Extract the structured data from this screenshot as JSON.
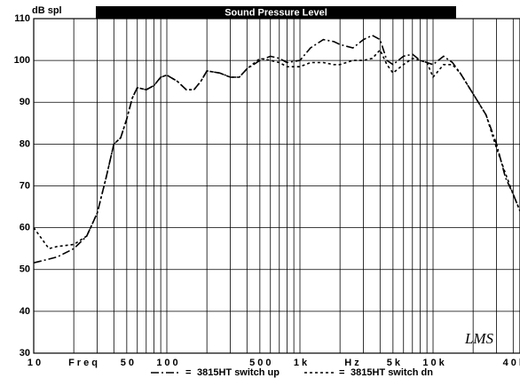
{
  "chart_data": {
    "type": "line",
    "title": "Sound Pressure Level",
    "y_label": "dB spl",
    "x_label_left": "Freq",
    "x_label_right": "Hz",
    "logo": "LMS",
    "legend_separator": "=",
    "x": [
      10,
      13,
      15,
      20,
      25,
      30,
      35,
      40,
      45,
      50,
      55,
      60,
      70,
      80,
      90,
      100,
      120,
      140,
      160,
      180,
      200,
      250,
      300,
      350,
      400,
      500,
      600,
      700,
      800,
      1000,
      1200,
      1500,
      1800,
      2000,
      2500,
      3000,
      3500,
      4000,
      4500,
      5000,
      6000,
      7000,
      8000,
      9000,
      10000,
      12000,
      14000,
      16000,
      20000,
      25000,
      30000,
      35000,
      40000,
      45000
    ],
    "series": [
      {
        "name": "3815HT switch up",
        "color": "#000000",
        "dash": "9 3 2 3",
        "values": [
          51.6,
          52.5,
          53,
          55,
          58,
          63.5,
          72,
          80,
          81.5,
          86,
          91,
          93.5,
          93,
          94,
          96,
          96.5,
          95,
          93,
          93,
          95,
          97.5,
          97,
          96,
          96,
          98,
          100,
          101,
          100.5,
          99.5,
          100,
          103,
          105,
          104.5,
          103.8,
          103,
          105,
          106,
          105,
          100,
          99,
          101,
          101.5,
          100,
          99.5,
          99,
          101,
          99.5,
          97,
          92,
          87,
          80,
          72,
          68,
          64
        ]
      },
      {
        "name": "3815HT switch dn",
        "color": "#000000",
        "dash": "3 3",
        "values": [
          60,
          55,
          55.5,
          56,
          58,
          63.5,
          72,
          80,
          81.5,
          86,
          91,
          93.5,
          93,
          94,
          96,
          96.5,
          95,
          93,
          93,
          95,
          97.5,
          97,
          96,
          96,
          98,
          100.5,
          100,
          99.5,
          98.5,
          98.5,
          99.5,
          99.5,
          99,
          99,
          100,
          100,
          100.5,
          102.5,
          99,
          97,
          99,
          100.5,
          100,
          99.5,
          96,
          99,
          99,
          97,
          92,
          87,
          79,
          73,
          68,
          64
        ]
      }
    ],
    "log_x": true,
    "xlim": [
      10,
      45000
    ],
    "ylim": [
      30,
      110
    ],
    "xticks": [
      10,
      50,
      100,
      500,
      {
        "value": 1000,
        "label": "1k"
      },
      {
        "value": 5000,
        "label": "5k"
      },
      {
        "value": 10000,
        "label": "10k"
      },
      {
        "value": 40000,
        "label": "40k"
      }
    ],
    "xgrid": [
      10,
      20,
      30,
      40,
      50,
      60,
      70,
      80,
      90,
      100,
      200,
      300,
      400,
      500,
      600,
      700,
      800,
      900,
      1000,
      2000,
      3000,
      4000,
      5000,
      6000,
      7000,
      8000,
      9000,
      10000,
      20000,
      30000,
      40000
    ],
    "yticks": [
      30,
      40,
      50,
      60,
      70,
      80,
      90,
      100,
      110
    ],
    "grid": true
  }
}
